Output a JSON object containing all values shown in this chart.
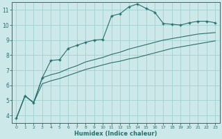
{
  "xlabel": "Humidex (Indice chaleur)",
  "background_color": "#cce8e8",
  "grid_color": "#99cccc",
  "line_color": "#2a6e6e",
  "xlim": [
    -0.5,
    23.5
  ],
  "ylim": [
    3.5,
    11.5
  ],
  "yticks": [
    4,
    5,
    6,
    7,
    8,
    9,
    10,
    11
  ],
  "xticks": [
    0,
    1,
    2,
    3,
    4,
    5,
    6,
    7,
    8,
    9,
    10,
    11,
    12,
    13,
    14,
    15,
    16,
    17,
    18,
    19,
    20,
    21,
    22,
    23
  ],
  "line1_x": [
    0,
    1,
    2,
    3,
    4,
    5,
    6,
    7,
    8,
    9,
    10,
    11,
    12,
    13,
    14,
    15,
    16,
    17,
    18,
    19,
    20,
    21,
    22,
    23
  ],
  "line1_y": [
    3.8,
    5.3,
    4.85,
    6.5,
    7.65,
    7.7,
    8.45,
    8.65,
    8.85,
    9.0,
    9.05,
    10.6,
    10.75,
    11.2,
    11.4,
    11.1,
    10.85,
    10.1,
    10.05,
    10.0,
    10.15,
    10.25,
    10.25,
    10.15
  ],
  "line2_x": [
    0,
    1,
    2,
    3,
    4,
    5,
    6,
    7,
    8,
    9,
    10,
    11,
    12,
    13,
    14,
    15,
    16,
    17,
    18,
    19,
    20,
    21,
    22,
    23
  ],
  "line2_y": [
    3.8,
    5.3,
    4.85,
    6.5,
    6.7,
    6.85,
    7.1,
    7.3,
    7.55,
    7.7,
    7.85,
    8.05,
    8.2,
    8.4,
    8.55,
    8.7,
    8.85,
    9.0,
    9.1,
    9.2,
    9.3,
    9.4,
    9.45,
    9.5
  ],
  "line3_x": [
    0,
    1,
    2,
    3,
    4,
    5,
    6,
    7,
    8,
    9,
    10,
    11,
    12,
    13,
    14,
    15,
    16,
    17,
    18,
    19,
    20,
    21,
    22,
    23
  ],
  "line3_y": [
    3.8,
    5.3,
    4.85,
    6.1,
    6.3,
    6.45,
    6.65,
    6.85,
    7.05,
    7.2,
    7.35,
    7.5,
    7.6,
    7.75,
    7.85,
    8.0,
    8.15,
    8.3,
    8.45,
    8.55,
    8.65,
    8.75,
    8.85,
    8.95
  ]
}
